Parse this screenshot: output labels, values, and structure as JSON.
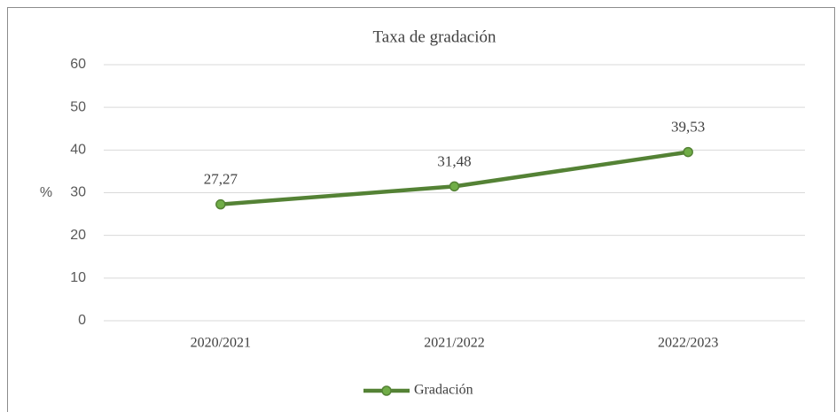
{
  "chart_data": {
    "type": "line",
    "title": "Taxa de gradación",
    "ylabel": "%",
    "categories": [
      "2020/2021",
      "2021/2022",
      "2022/2023"
    ],
    "series": [
      {
        "name": "Gradación",
        "color": "#548235",
        "marker_color": "#70ad47",
        "values": [
          27.27,
          31.48,
          39.53
        ],
        "value_labels": [
          "27,27",
          "31,48",
          "39,53"
        ]
      }
    ],
    "ylim": [
      0,
      60
    ],
    "yticks": [
      0,
      10,
      20,
      30,
      40,
      50,
      60
    ],
    "grid": true,
    "legend": "bottom"
  }
}
